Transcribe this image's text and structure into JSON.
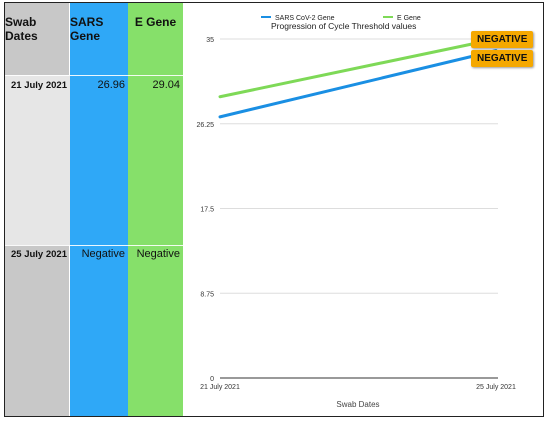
{
  "table": {
    "headers": {
      "date": "Swab Dates",
      "sars": "SARS Gene",
      "egene": "E Gene"
    },
    "rows": [
      {
        "date": "21 July 2021",
        "sars": "26.96",
        "egene": "29.04"
      },
      {
        "date": "25 July 2021",
        "sars": "Negative",
        "egene": "Negative"
      }
    ]
  },
  "colors": {
    "sars": "#1a8fe3",
    "egene": "#7ed957",
    "badge": "#f5a800"
  },
  "chart_data": {
    "type": "line",
    "title": "Progression of  Cycle Threshold values",
    "xlabel": "Swab Dates",
    "ylabel": "",
    "x": [
      "21 July 2021",
      "25 July 2021"
    ],
    "ylim": [
      0,
      35
    ],
    "yticks": [
      "0",
      "8.75",
      "17.5",
      "26.25",
      "35"
    ],
    "grid": true,
    "legend_position": "top",
    "series": [
      {
        "name": "SARS CoV-2 Gene",
        "values": [
          26.96,
          33.8
        ],
        "color": "#1a8fe3",
        "end_label": "NEGATIVE"
      },
      {
        "name": "E Gene",
        "values": [
          29.04,
          35.0
        ],
        "color": "#7ed957",
        "end_label": "NEGATIVE"
      }
    ]
  }
}
